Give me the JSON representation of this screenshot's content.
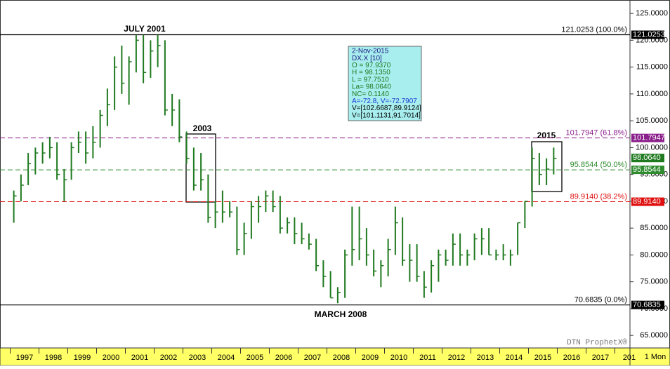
{
  "chart_data": {
    "type": "ohlc",
    "annotations": {
      "peak": "JULY 2001",
      "box_2003": "2003",
      "box_2015": "2015",
      "low": "MARCH 2008",
      "brand": "DTN ProphetX®"
    },
    "info": [
      "2-Nov-2015",
      "DX.X [10]",
      "O = 97.9370",
      "H = 98.1350",
      "L = 97.7510",
      "La= 98.0640",
      "NC= 0.1140",
      "A=-72.8, V=-72.7907",
      "V=[102.6687,89.9124]",
      "V=[101.1131,91.7014]"
    ],
    "categories": [
      "1997",
      "1998",
      "1999",
      "2000",
      "2001",
      "2002",
      "2003",
      "2004",
      "2005",
      "2006",
      "2007",
      "2008",
      "2009",
      "2010",
      "2011",
      "2012",
      "2013",
      "2014",
      "2015",
      "2016",
      "2017",
      "201"
    ],
    "period": "1 Mon",
    "color": "#1f7a1f",
    "high": [
      [
        92,
        95,
        99,
        100
      ],
      [
        101,
        102,
        101,
        96
      ],
      [
        101,
        103,
        103,
        104
      ],
      [
        107,
        111,
        117,
        119
      ],
      [
        117,
        121,
        121,
        120
      ],
      [
        121,
        120,
        110,
        109
      ],
      [
        103,
        100,
        99,
        95
      ],
      [
        90,
        92,
        90,
        89
      ],
      [
        86,
        90,
        91,
        92
      ],
      [
        92,
        91,
        87,
        87
      ],
      [
        86,
        84,
        83,
        79
      ],
      [
        77,
        74,
        81,
        89
      ],
      [
        89,
        85,
        81,
        79
      ],
      [
        83,
        89,
        87,
        82
      ],
      [
        82,
        77,
        79,
        81
      ],
      [
        81,
        84,
        84,
        81
      ],
      [
        84,
        85,
        85,
        81
      ],
      [
        82,
        81,
        86,
        90
      ],
      [
        100,
        99,
        98,
        100
      ]
    ],
    "low": [
      [
        86,
        90,
        93,
        95
      ],
      [
        97,
        98,
        94,
        90
      ],
      [
        94,
        99,
        97,
        98
      ],
      [
        100,
        104,
        107,
        110
      ],
      [
        108,
        114,
        112,
        113
      ],
      [
        115,
        106,
        104,
        101
      ],
      [
        97,
        92,
        92,
        86
      ],
      [
        85,
        86,
        87,
        80
      ],
      [
        80,
        83,
        86,
        88
      ],
      [
        88,
        84,
        84,
        82
      ],
      [
        82,
        81,
        77,
        74
      ],
      [
        72,
        71,
        72,
        78
      ],
      [
        79,
        78,
        76,
        74
      ],
      [
        76,
        80,
        78,
        75
      ],
      [
        75,
        72,
        73,
        75
      ],
      [
        78,
        78,
        78,
        78
      ],
      [
        79,
        80,
        80,
        79
      ],
      [
        79,
        78,
        80,
        85
      ],
      [
        89,
        93,
        93,
        95
      ]
    ],
    "close": [
      [
        91,
        93,
        97,
        99
      ],
      [
        99,
        100,
        95,
        94
      ],
      [
        100,
        101,
        99,
        101
      ],
      [
        106,
        108,
        115,
        112
      ],
      [
        116,
        120,
        114,
        118
      ],
      [
        119,
        107,
        107,
        102
      ],
      [
        98,
        93,
        94,
        87
      ],
      [
        88,
        88,
        88,
        81
      ],
      [
        84,
        89,
        89,
        91
      ],
      [
        89,
        85,
        86,
        84
      ],
      [
        83,
        82,
        78,
        76
      ],
      [
        72,
        73,
        80,
        81
      ],
      [
        83,
        80,
        77,
        78
      ],
      [
        81,
        86,
        79,
        79
      ],
      [
        76,
        74,
        78,
        80
      ],
      [
        79,
        82,
        80,
        80
      ],
      [
        83,
        83,
        80,
        80
      ],
      [
        80,
        80,
        86,
        90
      ],
      [
        98,
        95,
        96,
        98
      ]
    ],
    "ylim": [
      62.8,
      127.5
    ],
    "yticks": [
      {
        "value": 125,
        "label": "125.0000"
      },
      {
        "value": 120,
        "label": "120.0000"
      },
      {
        "value": 115,
        "label": "115.0000"
      },
      {
        "value": 110,
        "label": "110.0000"
      },
      {
        "value": 105,
        "label": "105.0000"
      },
      {
        "value": 100,
        "label": "100.0000"
      },
      {
        "value": 95,
        "label": "95.0000"
      },
      {
        "value": 90,
        "label": "90.0000"
      },
      {
        "value": 85,
        "label": "85.0000"
      },
      {
        "value": 80,
        "label": "80.0000"
      },
      {
        "value": 75,
        "label": "75.0000"
      },
      {
        "value": 70,
        "label": "70.0000"
      },
      {
        "value": 65,
        "label": "65.0000"
      }
    ],
    "levels": [
      {
        "value": 121.0253,
        "label": "121.0253 (100.0%)",
        "axis_label": "121.0253",
        "color": "#000000",
        "dash": false
      },
      {
        "value": 101.7947,
        "label": "101.7947 (61.8%)",
        "axis_label": "101.7947",
        "color": "#8a1e8a",
        "dash": true
      },
      {
        "value": 95.8544,
        "label": "95.8544 (50.0%)",
        "axis_label": "95.8544",
        "color": "#2e8b2e",
        "dash": true
      },
      {
        "value": 89.914,
        "label": "89.9140 (38.2%)",
        "axis_label": "89.9140",
        "color": "#e01010",
        "dash": true
      },
      {
        "value": 70.6835,
        "label": "70.6835 (0.0%)",
        "axis_label": "70.6835",
        "color": "#000000",
        "dash": false
      }
    ],
    "last": {
      "value": 98.064,
      "label": "98.0640",
      "color": "#1f7a1f"
    }
  }
}
